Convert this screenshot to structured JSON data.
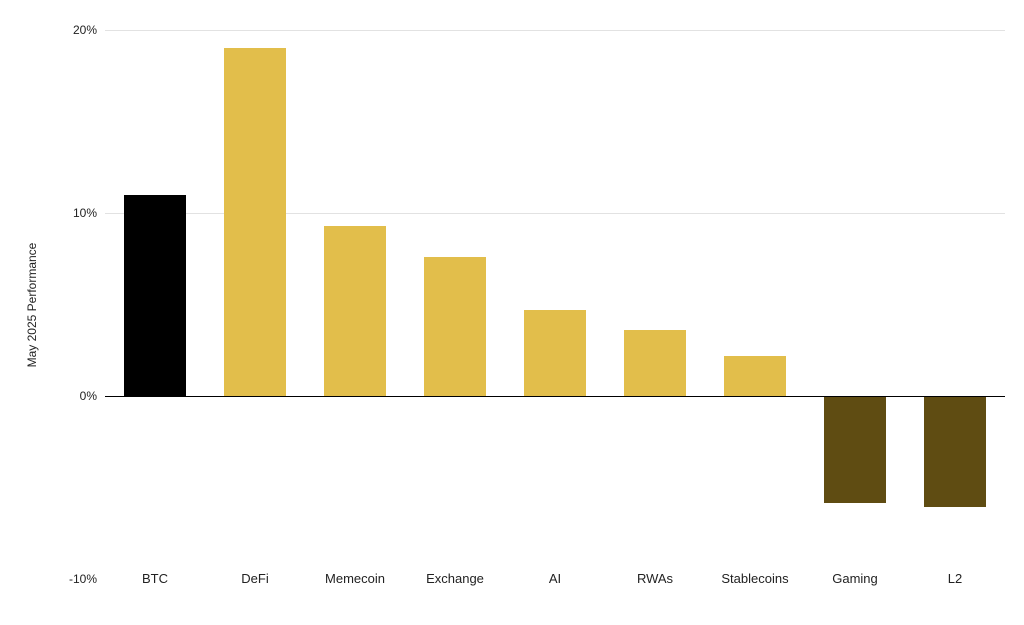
{
  "chart_data": {
    "type": "bar",
    "categories": [
      "BTC",
      "DeFi",
      "Memecoin",
      "Exchange",
      "AI",
      "RWAs",
      "Stablecoins",
      "Gaming",
      "L2"
    ],
    "values": [
      11,
      19,
      9.3,
      7.6,
      4.7,
      3.6,
      2.2,
      -5.8,
      -6.0
    ],
    "title": "",
    "xlabel": "",
    "ylabel": "May 2025 Performance",
    "ylim": [
      -10,
      20
    ],
    "yticks": [
      20,
      10,
      0,
      -10
    ],
    "ytick_labels": [
      "20%",
      "10%",
      "0%",
      "-10%"
    ],
    "bar_colors": [
      "#000000",
      "#E2BE4B",
      "#E2BE4B",
      "#E2BE4B",
      "#E2BE4B",
      "#E2BE4B",
      "#E2BE4B",
      "#5F4C12",
      "#5F4C12"
    ],
    "grid": true,
    "legend": "none",
    "background": "#FFFFFF"
  }
}
